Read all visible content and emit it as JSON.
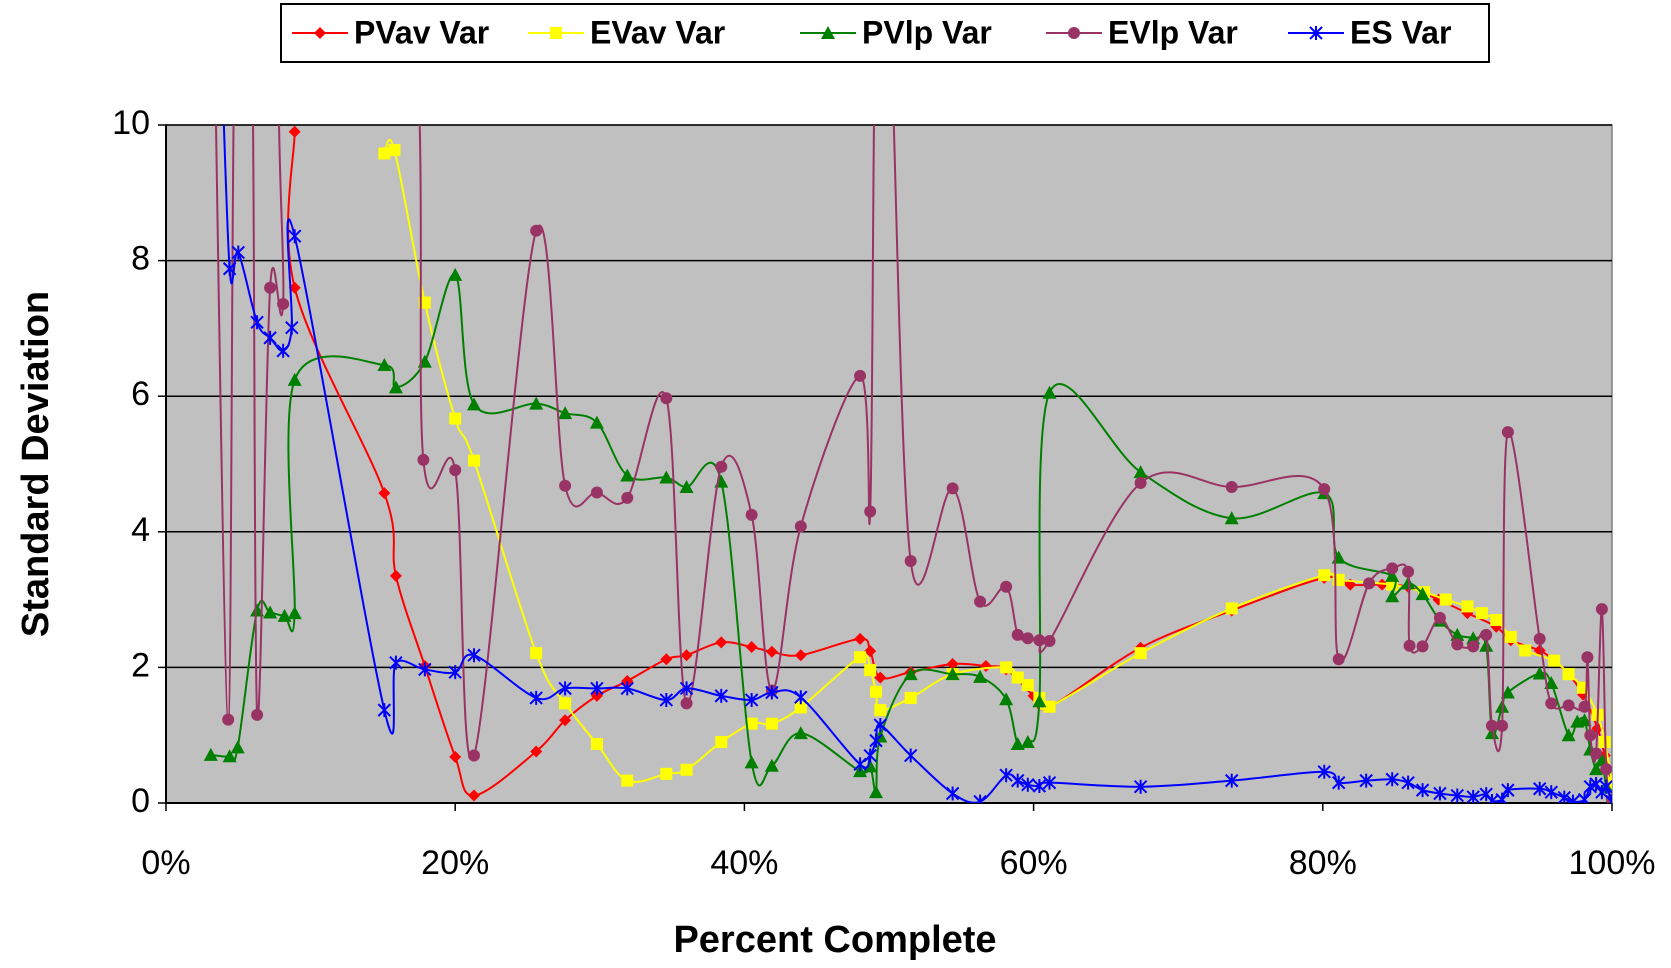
{
  "chart_data": {
    "type": "line",
    "x_label": "Percent Complete",
    "y_label": "Standard Deviation",
    "xlim": [
      0,
      100
    ],
    "ylim": [
      0,
      10
    ],
    "xticks": [
      {
        "value": 0,
        "label": "0%"
      },
      {
        "value": 20,
        "label": "20%"
      },
      {
        "value": 40,
        "label": "40%"
      },
      {
        "value": 60,
        "label": "60%"
      },
      {
        "value": 80,
        "label": "80%"
      },
      {
        "value": 100,
        "label": "100%"
      }
    ],
    "yticks": [
      0,
      2,
      4,
      6,
      8,
      10
    ],
    "grid": true,
    "legend": "top",
    "plot_background": "#c0c0c0",
    "series": [
      {
        "name": "PVav Var",
        "color": "#ff0000",
        "marker": "diamond",
        "x": [
          8.9,
          8.9,
          15.1,
          15.9,
          17.9,
          20.0,
          21.3,
          25.6,
          27.6,
          29.8,
          31.9,
          34.6,
          36.0,
          38.4,
          40.5,
          41.9,
          43.9,
          48.0,
          48.7,
          49.4,
          51.5,
          54.4,
          56.7,
          58.1,
          60.0,
          61.1,
          67.4,
          73.7,
          80.1,
          81.9,
          84.1,
          85.9,
          88,
          90,
          92,
          93,
          95,
          96,
          97,
          98,
          99,
          99.5,
          100
        ],
        "values": [
          9.9,
          7.6,
          4.57,
          3.35,
          2.02,
          0.68,
          0.11,
          0.76,
          1.22,
          1.58,
          1.8,
          2.12,
          2.18,
          2.37,
          2.3,
          2.23,
          2.18,
          2.42,
          2.24,
          1.85,
          1.93,
          2.05,
          2.02,
          1.97,
          1.58,
          1.42,
          2.29,
          2.84,
          3.32,
          3.22,
          3.22,
          3.19,
          3.0,
          2.8,
          2.6,
          2.4,
          2.25,
          2.1,
          1.9,
          1.6,
          1.1,
          0.7,
          0.3
        ]
      },
      {
        "name": "EVav Var",
        "color": "#ffff00",
        "marker": "square",
        "x": [
          15.1,
          15.8,
          17.9,
          20.0,
          21.3,
          25.6,
          27.6,
          29.8,
          31.9,
          34.6,
          36.0,
          38.4,
          40.5,
          41.9,
          43.9,
          48.0,
          48.7,
          49.1,
          49.4,
          51.5,
          54.4,
          58.1,
          58.9,
          59.6,
          60.4,
          61.1,
          67.4,
          73.7,
          80.1,
          81.1,
          84.8,
          87.0,
          88.5,
          90,
          91,
          92,
          93,
          94,
          96,
          97,
          98,
          99,
          99.5,
          100
        ],
        "values": [
          9.58,
          9.63,
          7.38,
          5.67,
          5.05,
          2.21,
          1.47,
          0.87,
          0.33,
          0.43,
          0.49,
          0.9,
          1.17,
          1.17,
          1.41,
          2.15,
          1.96,
          1.64,
          1.37,
          1.55,
          1.9,
          2.0,
          1.85,
          1.74,
          1.55,
          1.42,
          2.21,
          2.87,
          3.36,
          3.29,
          3.22,
          3.11,
          3.0,
          2.9,
          2.8,
          2.7,
          2.45,
          2.25,
          2.1,
          1.9,
          1.7,
          1.3,
          0.9,
          0.3
        ]
      },
      {
        "name": "PVlp Var",
        "color": "#008000",
        "marker": "triangle",
        "x": [
          3.1,
          4.4,
          4.96,
          6.3,
          7.2,
          8.2,
          8.9,
          8.9,
          15.1,
          15.9,
          17.9,
          20.0,
          21.3,
          25.6,
          27.6,
          29.8,
          31.9,
          34.6,
          36.0,
          38.4,
          40.5,
          41.9,
          43.9,
          48.0,
          48.7,
          49.1,
          49.4,
          51.5,
          54.4,
          56.3,
          58.1,
          58.9,
          59.6,
          60.4,
          61.1,
          67.4,
          73.7,
          80.1,
          81.1,
          84.8,
          84.8,
          85.9,
          86.9,
          88.1,
          89.3,
          90.4,
          91.3,
          91.7,
          92.4,
          92.8,
          95.0,
          95.8,
          97.0,
          97.6,
          98.1,
          98.5,
          98.9,
          99.3,
          99.6,
          100
        ],
        "values": [
          0.71,
          0.69,
          0.82,
          2.84,
          2.81,
          2.76,
          2.8,
          6.24,
          6.46,
          6.13,
          6.51,
          7.79,
          5.88,
          5.89,
          5.75,
          5.61,
          4.83,
          4.8,
          4.66,
          4.74,
          0.6,
          0.55,
          1.03,
          0.47,
          0.54,
          0.16,
          0.98,
          1.9,
          1.9,
          1.86,
          1.53,
          0.87,
          0.9,
          1.5,
          6.05,
          4.88,
          4.2,
          4.57,
          3.62,
          3.35,
          3.05,
          3.24,
          3.08,
          2.69,
          2.48,
          2.43,
          2.32,
          1.03,
          1.42,
          1.63,
          1.91,
          1.77,
          1.0,
          1.2,
          1.22,
          0.79,
          0.5,
          0.63,
          0.24,
          0.03
        ]
      },
      {
        "name": "EVlp Var",
        "color": "#993366",
        "marker": "circle",
        "x": [
          3.3,
          4.3,
          4.8,
          5.9,
          6.3,
          7.2,
          8.1,
          8.5,
          16.7,
          17.8,
          20.0,
          21.3,
          25.6,
          27.6,
          29.8,
          31.9,
          34.6,
          36.0,
          38.4,
          40.5,
          41.9,
          43.9,
          48.0,
          48.7,
          49.1,
          50.0,
          51.5,
          54.4,
          56.3,
          58.1,
          58.9,
          59.6,
          60.4,
          61.1,
          67.4,
          73.7,
          80.1,
          81.1,
          83.2,
          84.8,
          85.9,
          86.0,
          86.9,
          88.1,
          89.3,
          90.4,
          91.3,
          91.7,
          92.4,
          92.8,
          95.0,
          95.8,
          97.0,
          98.1,
          98.3,
          98.5,
          98.9,
          99.3,
          99.6,
          100
        ],
        "values": [
          12,
          1.23,
          12,
          12,
          1.3,
          7.6,
          7.36,
          12,
          12,
          5.06,
          4.91,
          0.7,
          8.44,
          4.68,
          4.58,
          4.5,
          5.97,
          1.47,
          4.96,
          4.25,
          1.66,
          4.08,
          6.3,
          4.3,
          12,
          12,
          3.57,
          4.64,
          2.97,
          3.19,
          2.48,
          2.43,
          2.4,
          2.39,
          4.72,
          4.66,
          4.63,
          2.12,
          3.24,
          3.46,
          3.41,
          2.32,
          2.31,
          2.73,
          2.34,
          2.31,
          2.48,
          1.14,
          1.14,
          5.47,
          2.42,
          1.47,
          1.44,
          1.42,
          2.15,
          1.0,
          0.73,
          2.86,
          0.5,
          0.05
        ]
      },
      {
        "name": "ES Var",
        "color": "#0000ff",
        "marker": "star",
        "x": [
          3.7,
          4.4,
          5.0,
          6.3,
          7.2,
          8.1,
          8.7,
          8.9,
          15.1,
          15.9,
          17.9,
          20.0,
          21.3,
          25.6,
          27.6,
          29.8,
          31.9,
          34.6,
          36.0,
          38.4,
          40.5,
          41.9,
          43.9,
          48.0,
          48.7,
          49.1,
          49.4,
          51.5,
          54.4,
          56.3,
          58.1,
          58.9,
          59.6,
          60.4,
          61.1,
          67.4,
          73.7,
          80.1,
          81.1,
          83.0,
          84.8,
          85.9,
          86.9,
          88.1,
          89.3,
          90.4,
          91.3,
          91.7,
          92.4,
          92.8,
          95.0,
          95.8,
          96.7,
          97.3,
          98.1,
          98.5,
          98.9,
          99.3,
          99.6,
          100
        ],
        "values": [
          12,
          7.88,
          8.12,
          7.09,
          6.86,
          6.67,
          7.01,
          8.36,
          1.37,
          2.07,
          1.97,
          1.93,
          2.18,
          1.55,
          1.69,
          1.69,
          1.69,
          1.52,
          1.69,
          1.58,
          1.52,
          1.63,
          1.56,
          0.57,
          0.7,
          0.92,
          1.15,
          0.7,
          0.14,
          0.02,
          0.41,
          0.33,
          0.27,
          0.25,
          0.3,
          0.24,
          0.33,
          0.46,
          0.3,
          0.33,
          0.35,
          0.3,
          0.19,
          0.14,
          0.11,
          0.09,
          0.13,
          0.03,
          0.05,
          0.19,
          0.21,
          0.16,
          0.08,
          0.02,
          0.05,
          0.24,
          0.28,
          0.16,
          0.24,
          0.02
        ]
      }
    ]
  }
}
